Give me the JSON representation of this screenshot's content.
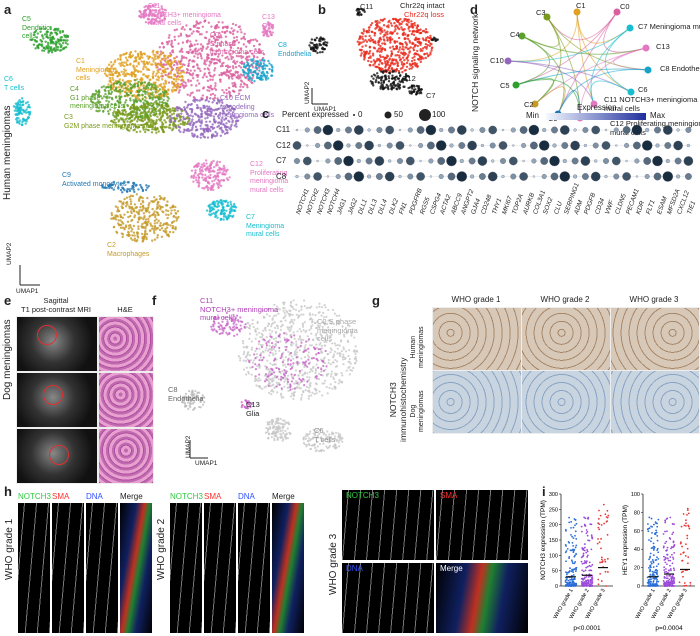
{
  "panels": {
    "a": "a",
    "b": "b",
    "c": "c",
    "d": "d",
    "e": "e",
    "f": "f",
    "g": "g",
    "h": "h",
    "i": "i"
  },
  "a": {
    "side_label": "Human meningiomas",
    "umap2": "UMAP2",
    "umap1": "UMAP1",
    "clusters": [
      {
        "id": "c11",
        "text": "C11\nNOTCH3+ meningioma\nmural cells",
        "color": "#e377c2"
      },
      {
        "id": "c13",
        "text": "C13\nGlia",
        "color": "#e377c2"
      },
      {
        "id": "c0",
        "text": "C0\nS phase\nmeningioma cells",
        "color": "#d95f9f"
      },
      {
        "id": "c5",
        "text": "C5\nDendritic\ncells",
        "color": "#2ca02c"
      },
      {
        "id": "c1",
        "text": "C1\nMeningioma\ncells",
        "color": "#e0a020"
      },
      {
        "id": "c4",
        "text": "C4\nG1 phase\nmeningioma cells",
        "color": "#5aa02c"
      },
      {
        "id": "c3",
        "text": "C3\nG2M phase meningioma cells",
        "color": "#7a9a1a"
      },
      {
        "id": "c6",
        "text": "C6\nT cells",
        "color": "#17becf"
      },
      {
        "id": "c8",
        "text": "C8\nEndothelia",
        "color": "#17a2c9"
      },
      {
        "id": "c10",
        "text": "C10 ECM\nremodeling\nmeningioma cells",
        "color": "#9467bd"
      },
      {
        "id": "c9",
        "text": "C9\nActivated monocytes",
        "color": "#1f77b4"
      },
      {
        "id": "c12",
        "text": "C12\nProliferating\nmeningioma\nmural cells",
        "color": "#e377c2"
      },
      {
        "id": "c2",
        "text": "C2\nMacrophages",
        "color": "#c49a28"
      },
      {
        "id": "c7",
        "text": "C7\nMeningioma\nmural cells",
        "color": "#17becf"
      }
    ]
  },
  "b": {
    "c11": "C11",
    "intact": "Chr22q intact",
    "loss": "Chr22q loss",
    "c12": "C12",
    "c7": "C7",
    "umap2": "UMAP2",
    "umap1": "UMAP1",
    "intact_color": "#111111",
    "loss_color": "#e8291c"
  },
  "d": {
    "side_label": "NOTCH signaling network",
    "nodes": [
      {
        "id": "C1",
        "label": "C1"
      },
      {
        "id": "C0",
        "label": "C0"
      },
      {
        "id": "C3",
        "label": "C3"
      },
      {
        "id": "C7",
        "label": "C7 Meningioma mural cells"
      },
      {
        "id": "C4",
        "label": "C4"
      },
      {
        "id": "C13",
        "label": "C13"
      },
      {
        "id": "C10",
        "label": "C10"
      },
      {
        "id": "C8",
        "label": "C8 Endothelia"
      },
      {
        "id": "C5",
        "label": "C5"
      },
      {
        "id": "C6",
        "label": "C6"
      },
      {
        "id": "C2",
        "label": "C2"
      },
      {
        "id": "C9",
        "label": "C9"
      },
      {
        "id": "C11",
        "label": "C11 NOTCH3+ meningioma mural cells"
      },
      {
        "id": "C12",
        "label": "C12 Proliferating meningioma mural cells"
      }
    ]
  },
  "c": {
    "legend_pct": "Percent expressed",
    "pct_values": [
      "0",
      "50",
      "100"
    ],
    "legend_expr": "Expression",
    "min": "Min",
    "max": "Max",
    "rows": [
      "C11",
      "C12",
      "C7",
      "C8"
    ],
    "genes": [
      "NOTCH1",
      "NOTCH2",
      "NOTCH3",
      "NOTCH4",
      "JAG1",
      "JAG2",
      "DLL1",
      "DLL3",
      "DLL4",
      "DLK2",
      "FN1",
      "PDGFRB",
      "RGS5",
      "CSPG4",
      "ACTA2",
      "ABCC9",
      "ANGPT2",
      "GJA4",
      "CD248",
      "THY1",
      "MKI67",
      "TOP2A",
      "AURKB",
      "COL3A1",
      "SOX2",
      "CLU",
      "SERPING1",
      "ADM",
      "PDGFB",
      "CD34",
      "VWF",
      "CLDN5",
      "PECAM1",
      "KDR",
      "FLT1",
      "ESAM",
      "MFSD2A",
      "CXCL12",
      "TIE1"
    ]
  },
  "e": {
    "side_label": "Dog meningiomas",
    "mri_title": "Sagittal\nT1 post-contrast MRI",
    "he_title": "H&E"
  },
  "f": {
    "c11": "C11\nNOTCH3+ meningioma\nmural cells",
    "c0": "C0 S phase\nmeningioma\ncells",
    "c8": "C8\nEndothelia",
    "c13": "C13\nGlia",
    "c6": "C6\nT cells",
    "umap2": "UMAP2",
    "umap1": "UMAP1"
  },
  "g": {
    "cols": [
      "WHO grade 1",
      "WHO grade 2",
      "WHO grade 3"
    ],
    "side_label": "NOTCH3\nimmunohistochemistry",
    "row1": "Human\nmeningiomas",
    "row2": "Dog\nmeningiomas"
  },
  "h": {
    "ch_notch3": "NOTCH3",
    "ch_sma": "SMA",
    "ch_dna": "DNA",
    "ch_merge": "Merge",
    "grade1": "WHO grade 1",
    "grade2": "WHO grade 2",
    "grade3": "WHO grade 3",
    "notch3_color": "#2ecc40",
    "sma_color": "#ff3030",
    "dna_color": "#3050ff"
  },
  "i": {
    "chart_data": [
      {
        "type": "scatter",
        "ylabel": "NOTCH3 expression (TPM)",
        "categories": [
          "WHO grade 1",
          "WHO grade 2",
          "WHO grade 3"
        ],
        "colors": [
          "#2a6ed8",
          "#9a4bd8",
          "#e83a3a"
        ],
        "ylim": [
          0,
          300
        ],
        "yticks": [
          0,
          50,
          100,
          150,
          200,
          250,
          300
        ],
        "means": [
          30,
          35,
          60
        ],
        "pvalue": "p<0.0001"
      },
      {
        "type": "scatter",
        "ylabel": "HEY1 expression (TPM)",
        "categories": [
          "WHO grade 1",
          "WHO grade 2",
          "WHO grade 3"
        ],
        "colors": [
          "#2a6ed8",
          "#9a4bd8",
          "#e83a3a"
        ],
        "ylim": [
          0,
          100
        ],
        "yticks": [
          0,
          20,
          40,
          60,
          80,
          100
        ],
        "means": [
          10,
          13,
          18
        ],
        "pvalue": "p=0.0004"
      }
    ]
  }
}
